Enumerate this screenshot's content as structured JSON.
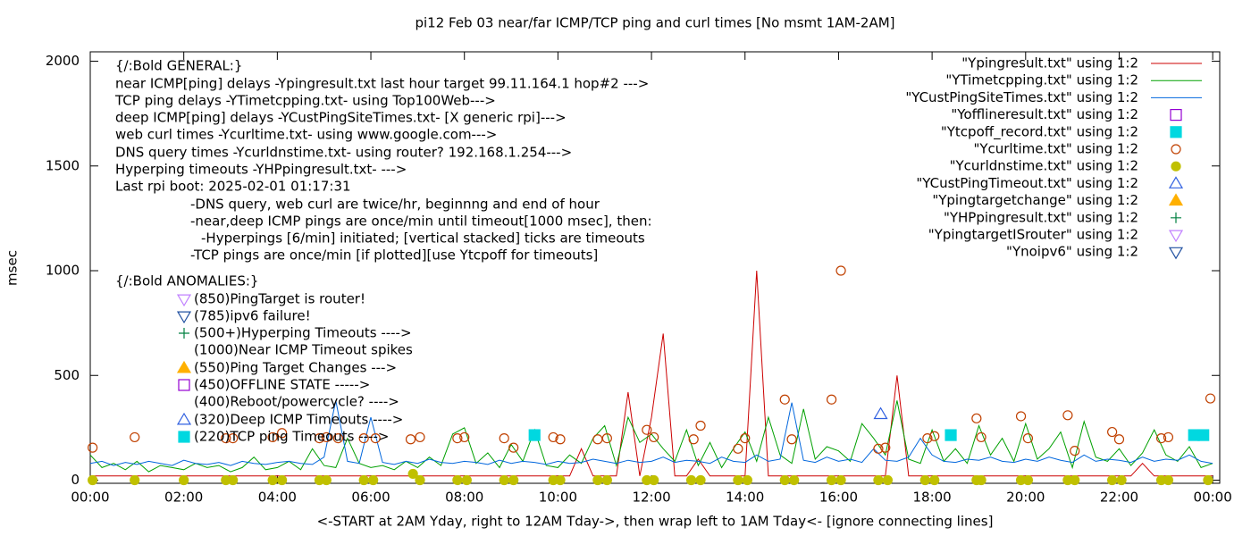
{
  "chart_data": {
    "type": "line",
    "title": "pi12 Feb 03  near/far ICMP/TCP ping and curl times [No msmt 1AM-2AM]",
    "x_label": "<-START at 2AM Yday, right to 12AM Tday->, then wrap left to 1AM Tday<- [ignore connecting lines]",
    "y_label": "msec",
    "xlim": [
      0,
      24.15
    ],
    "ylim": [
      -15,
      2045
    ],
    "xticks": [
      {
        "value": 0,
        "label": "00:00"
      },
      {
        "value": 2,
        "label": "02:00"
      },
      {
        "value": 4,
        "label": "04:00"
      },
      {
        "value": 6,
        "label": "06:00"
      },
      {
        "value": 8,
        "label": "08:00"
      },
      {
        "value": 10,
        "label": "10:00"
      },
      {
        "value": 12,
        "label": "12:00"
      },
      {
        "value": 14,
        "label": "14:00"
      },
      {
        "value": 16,
        "label": "16:00"
      },
      {
        "value": 18,
        "label": "18:00"
      },
      {
        "value": 20,
        "label": "20:00"
      },
      {
        "value": 22,
        "label": "22:00"
      },
      {
        "value": 24,
        "label": "00:00"
      }
    ],
    "yticks": [
      0,
      500,
      1000,
      1500,
      2000
    ],
    "legend_position": "top-right",
    "annotations": [
      "{/:Bold GENERAL:}",
      "near ICMP[ping] delays -Ypingresult.txt last hour target 99.11.164.1 hop#2 --->",
      "TCP ping delays -YTimetcpping.txt- using Top100Web--->",
      "deep ICMP[ping] delays -YCustPingSiteTimes.txt- [X generic rpi]--->",
      "web curl times -Ycurltime.txt- using www.google.com--->",
      "DNS query times -Ycurldnstime.txt- using router? 192.168.1.254--->",
      "Hyperping timeouts -YHPpingresult.txt- --->",
      "Last rpi boot: 2025-02-01 01:17:31",
      "-DNS query, web curl are twice/hr, beginnng and end of hour",
      "-near,deep ICMP pings are once/min until timeout[1000 msec], then:",
      "-Hyperpings [6/min] initiated; [vertical stacked] ticks are timeouts",
      "-TCP pings are once/min [if plotted][use Ytcpoff for timeouts]",
      "{/:Bold ANOMALIES:}",
      "(850)PingTarget is router!",
      "(785)ipv6 failure!",
      "(500+)Hyperping Timeouts ---->",
      "(1000)Near ICMP Timeout spikes",
      "(550)Ping Target Changes --->",
      "(450)OFFLINE STATE ----->",
      "(400)Reboot/powercycle? ---->",
      "(320)Deep ICMP Timeouts ---->",
      "(220)TCP ping Timeouts ---->"
    ],
    "x": [
      0,
      0.25,
      0.5,
      0.75,
      1,
      1.25,
      1.5,
      1.75,
      2,
      2.25,
      2.5,
      2.75,
      3,
      3.25,
      3.5,
      3.75,
      4,
      4.25,
      4.5,
      4.75,
      5,
      5.25,
      5.5,
      5.75,
      6,
      6.25,
      6.5,
      6.75,
      7,
      7.25,
      7.5,
      7.75,
      8,
      8.25,
      8.5,
      8.75,
      9,
      9.25,
      9.5,
      9.75,
      10,
      10.25,
      10.5,
      10.75,
      11,
      11.25,
      11.5,
      11.75,
      12,
      12.25,
      12.5,
      12.75,
      13,
      13.25,
      13.5,
      13.75,
      14,
      14.25,
      14.5,
      14.75,
      15,
      15.25,
      15.5,
      15.75,
      16,
      16.25,
      16.5,
      16.75,
      17,
      17.25,
      17.5,
      17.75,
      18,
      18.25,
      18.5,
      18.75,
      19,
      19.25,
      19.5,
      19.75,
      20,
      20.25,
      20.5,
      20.75,
      21,
      21.25,
      21.5,
      21.75,
      22,
      22.25,
      22.5,
      22.75,
      23,
      23.25,
      23.5,
      23.75,
      24
    ],
    "series": [
      {
        "name": "\"Ypingresult.txt\" using 1:2",
        "color": "#cc0000",
        "marker": "line",
        "values": [
          20,
          20,
          20,
          20,
          20,
          20,
          20,
          20,
          20,
          20,
          20,
          20,
          20,
          20,
          20,
          20,
          20,
          20,
          20,
          20,
          20,
          20,
          20,
          20,
          20,
          20,
          20,
          20,
          20,
          20,
          20,
          20,
          20,
          20,
          20,
          20,
          20,
          20,
          20,
          20,
          20,
          20,
          150,
          20,
          20,
          20,
          420,
          20,
          300,
          700,
          20,
          20,
          100,
          20,
          20,
          20,
          20,
          1000,
          20,
          20,
          20,
          20,
          20,
          20,
          20,
          20,
          20,
          20,
          20,
          500,
          20,
          20,
          20,
          20,
          20,
          20,
          20,
          20,
          20,
          20,
          20,
          20,
          20,
          20,
          20,
          20,
          20,
          20,
          20,
          20,
          80,
          20,
          20,
          20,
          20,
          20,
          20
        ]
      },
      {
        "name": "\"YTimetcpping.txt\" using 1:2",
        "color": "#00a000",
        "marker": "line",
        "values": [
          120,
          60,
          80,
          50,
          90,
          40,
          70,
          60,
          50,
          80,
          60,
          70,
          40,
          60,
          110,
          50,
          60,
          90,
          50,
          150,
          70,
          60,
          200,
          80,
          60,
          70,
          50,
          90,
          60,
          110,
          70,
          220,
          250,
          80,
          130,
          60,
          170,
          90,
          240,
          70,
          60,
          120,
          80,
          200,
          260,
          70,
          300,
          180,
          220,
          150,
          90,
          240,
          70,
          180,
          60,
          150,
          230,
          90,
          300,
          120,
          80,
          340,
          100,
          160,
          140,
          90,
          270,
          200,
          120,
          380,
          100,
          80,
          240,
          90,
          150,
          80,
          260,
          120,
          200,
          90,
          270,
          100,
          150,
          230,
          60,
          280,
          110,
          90,
          150,
          70,
          130,
          240,
          120,
          90,
          160,
          60,
          80
        ]
      },
      {
        "name": "\"YCustPingSiteTimes.txt\" using 1:2",
        "color": "#0066dd",
        "marker": "line",
        "values": [
          80,
          90,
          70,
          85,
          75,
          90,
          80,
          70,
          95,
          80,
          75,
          85,
          70,
          90,
          80,
          75,
          85,
          90,
          80,
          75,
          110,
          380,
          90,
          80,
          300,
          85,
          75,
          90,
          80,
          100,
          85,
          80,
          90,
          85,
          75,
          95,
          80,
          90,
          85,
          75,
          90,
          80,
          85,
          100,
          90,
          80,
          95,
          85,
          90,
          110,
          85,
          95,
          90,
          80,
          110,
          90,
          85,
          120,
          90,
          100,
          370,
          95,
          85,
          110,
          90,
          100,
          85,
          150,
          95,
          90,
          110,
          200,
          120,
          90,
          85,
          100,
          95,
          110,
          90,
          85,
          100,
          90,
          110,
          95,
          85,
          120,
          90,
          100,
          95,
          85,
          110,
          90,
          100,
          95,
          120,
          90,
          80
        ]
      },
      {
        "name": "\"Yofflineresult.txt\" using 1:2",
        "color": "#9400d3",
        "marker": "square-open",
        "x": [],
        "values": []
      },
      {
        "name": "\"Ytcpoff_record.txt\" using 1:2",
        "color": "#00d8e0",
        "marker": "square",
        "x": [
          9.5,
          18.4,
          23.6,
          23.8
        ],
        "values": [
          215,
          215,
          215,
          215
        ]
      },
      {
        "name": "\"Ycurltime.txt\" using 1:2",
        "color": "#c04000",
        "marker": "circle-open",
        "x": [
          0.05,
          0.95,
          2.0,
          2.9,
          3.05,
          3.9,
          4.1,
          4.9,
          5.05,
          5.3,
          5.85,
          6.1,
          6.85,
          7.05,
          7.85,
          8.0,
          8.85,
          9.05,
          9.9,
          10.05,
          10.85,
          11.05,
          11.9,
          12.05,
          12.9,
          13.05,
          13.85,
          14.0,
          14.85,
          15.0,
          15.85,
          16.05,
          16.85,
          17.0,
          17.9,
          18.05,
          18.95,
          19.05,
          19.9,
          20.05,
          20.9,
          21.05,
          21.85,
          22.0,
          22.9,
          23.05,
          23.95
        ],
        "values": [
          155,
          205,
          205,
          200,
          200,
          205,
          225,
          200,
          205,
          200,
          200,
          200,
          195,
          205,
          200,
          205,
          200,
          155,
          205,
          195,
          195,
          200,
          240,
          205,
          195,
          260,
          150,
          200,
          385,
          195,
          385,
          1000,
          150,
          155,
          200,
          210,
          295,
          205,
          305,
          200,
          310,
          140,
          230,
          195,
          200,
          205,
          390
        ]
      },
      {
        "name": "\"Ycurldnstime.txt\" using 1:2",
        "color": "#c0c000",
        "marker": "circle",
        "x": [
          0.05,
          0.95,
          2.0,
          2.9,
          3.05,
          3.9,
          4.1,
          4.9,
          5.05,
          5.85,
          6.05,
          6.9,
          7.05,
          7.85,
          8.05,
          8.85,
          9.05,
          9.9,
          10.05,
          10.85,
          11.05,
          11.9,
          12.05,
          12.85,
          13.05,
          13.85,
          14.05,
          14.85,
          15.05,
          15.85,
          16.05,
          16.85,
          17.05,
          17.85,
          18.05,
          18.95,
          19.05,
          19.9,
          20.05,
          20.9,
          21.05,
          21.85,
          22.05,
          22.9,
          23.05,
          23.9
        ],
        "values": [
          0,
          0,
          0,
          0,
          0,
          0,
          0,
          0,
          0,
          0,
          0,
          30,
          0,
          0,
          0,
          0,
          0,
          0,
          0,
          0,
          0,
          0,
          0,
          0,
          0,
          0,
          0,
          0,
          0,
          0,
          0,
          0,
          0,
          0,
          0,
          0,
          0,
          0,
          0,
          0,
          0,
          0,
          0,
          0,
          0,
          0
        ]
      },
      {
        "name": "\"YCustPingTimeout.txt\" using 1:2",
        "color": "#3060e0",
        "marker": "triangle-open",
        "x": [
          16.9
        ],
        "values": [
          315
        ]
      },
      {
        "name": "\"Ypingtargetchange\" using 1:2",
        "color": "#ffb000",
        "marker": "triangle",
        "x": [],
        "values": []
      },
      {
        "name": "\"YHPpingresult.txt\" using 1:2",
        "color": "#008040",
        "marker": "plus",
        "x": [],
        "values": []
      },
      {
        "name": "\"YpingtargetISrouter\" using 1:2",
        "color": "#c080ff",
        "marker": "triangle-down-open",
        "x": [],
        "values": []
      },
      {
        "name": "\"Ynoipv6\" using 1:2",
        "color": "#2050a0",
        "marker": "triangle-down-open",
        "x": [],
        "values": []
      }
    ]
  }
}
